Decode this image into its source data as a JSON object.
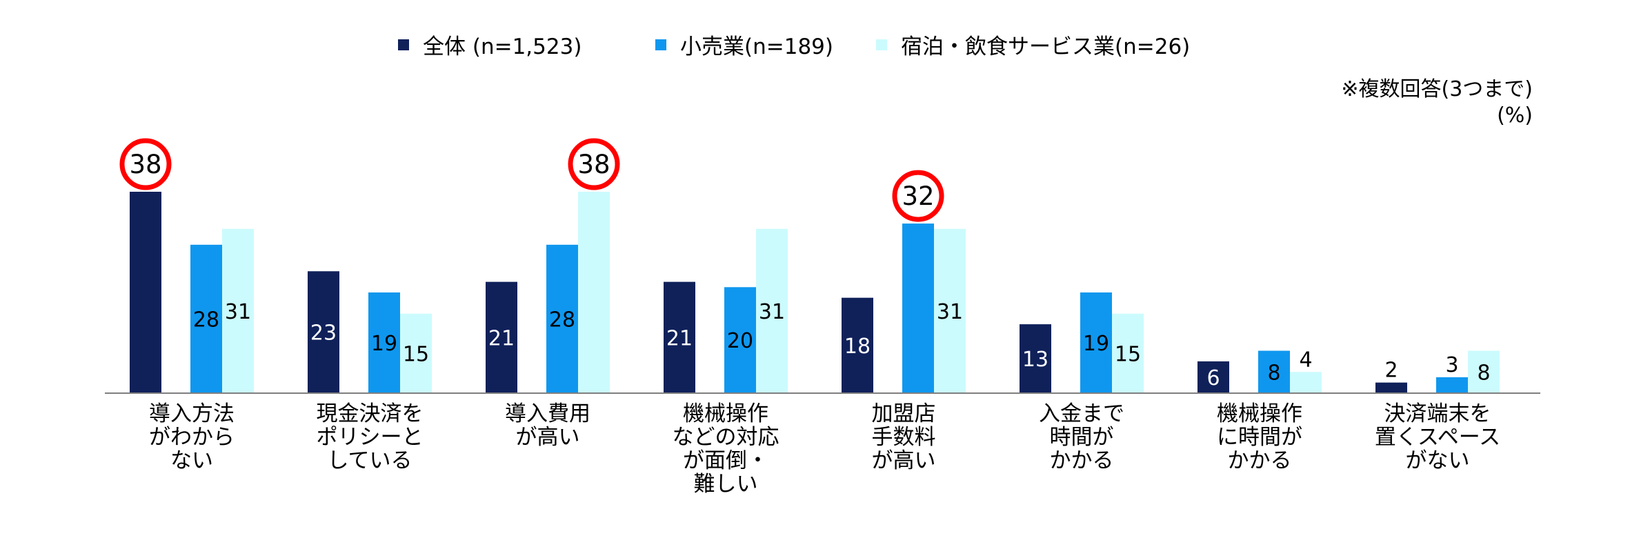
{
  "chart_data": {
    "type": "bar",
    "title": "",
    "xlabel": "",
    "ylabel": "",
    "ylim": [
      0,
      38
    ],
    "grid": false,
    "legend_position": "top-center",
    "notes": [
      "※複数回答(3つまで)",
      "(%)"
    ],
    "categories": [
      "導入方法\nがわから\nない",
      "現金決済を\nポリシーと\nしている",
      "導入費用\nが高い",
      "機械操作\nなどの対応\nが面倒・\n難しい",
      "加盟店\n手数料\nが高い",
      "入金まで\n時間が\nかかる",
      "機械操作\nに時間が\nかかる",
      "決済端末を\n置くスペース\nがない"
    ],
    "series": [
      {
        "name": "全体 (n=1,523)",
        "color": "#10215a",
        "values": [
          38,
          23,
          21,
          21,
          18,
          13,
          6,
          2
        ]
      },
      {
        "name": "小売業(n=189)",
        "color": "#0f97ef",
        "values": [
          28,
          19,
          28,
          20,
          32,
          19,
          8,
          3
        ]
      },
      {
        "name": "宿泊・飲食サービス業(n=26)",
        "color": "#ccfbfd",
        "values": [
          31,
          15,
          38,
          31,
          31,
          15,
          4,
          8
        ]
      }
    ],
    "highlights": [
      {
        "category_index": 0,
        "series_index": 0,
        "value": 38
      },
      {
        "category_index": 2,
        "series_index": 2,
        "value": 38
      },
      {
        "category_index": 4,
        "series_index": 1,
        "value": 32
      }
    ]
  }
}
